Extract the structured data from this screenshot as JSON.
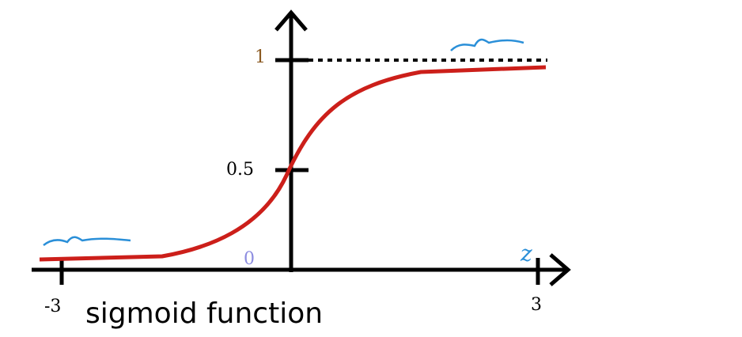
{
  "labels": {
    "y_top": "1",
    "y_mid": "0.5",
    "origin": "0",
    "x_name": "z",
    "x_left": "-3",
    "x_right": "3"
  },
  "caption": "sigmoid function"
}
